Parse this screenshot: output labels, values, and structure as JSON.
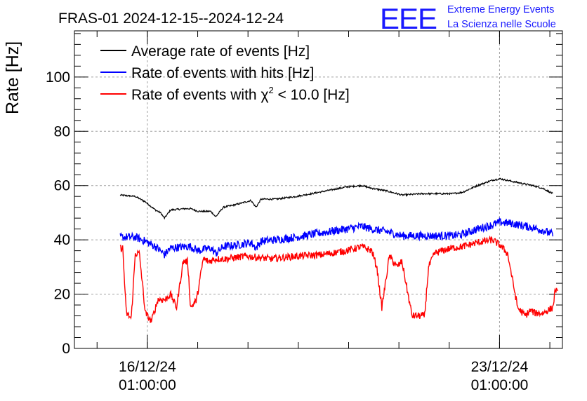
{
  "header": {
    "title": "FRAS-01 2024-12-15--2024-12-24",
    "logo_text": "EEE",
    "org_line1": "Extreme Energy Events",
    "org_line2": "La Scienza nelle Scuole"
  },
  "colors": {
    "average": "#000000",
    "hits": "#0000ff",
    "chi2": "#ff0000",
    "grid": "#a0a0a0",
    "logo": "#1a1aff"
  },
  "chart_data": {
    "type": "line",
    "title": "FRAS-01 2024-12-15--2024-12-24",
    "xlabel": "",
    "ylabel": "Rate [Hz]",
    "ylim": [
      0,
      117
    ],
    "xlim_days_from_2024_12_15_00h": [
      -0.41,
      9.29
    ],
    "y_ticks": [
      0,
      20,
      40,
      60,
      80,
      100
    ],
    "x_ticks": [
      {
        "day": 1.04,
        "line1": "16/12/24",
        "line2": "01:00:00"
      },
      {
        "day": 8.04,
        "line1": "23/12/24",
        "line2": "01:00:00"
      }
    ],
    "grid": true,
    "legend_position": "top-left",
    "series": [
      {
        "name": "Average rate of events [Hz]",
        "key": "average",
        "x": [
          0.5,
          0.8,
          1.0,
          1.2,
          1.3,
          1.38,
          1.5,
          1.8,
          1.9,
          2.05,
          2.3,
          2.4,
          2.55,
          2.8,
          3.1,
          3.2,
          3.3,
          3.6,
          4.0,
          4.3,
          5.0,
          5.3,
          5.5,
          5.8,
          6.1,
          6.5,
          7.1,
          7.3,
          7.6,
          7.9,
          8.05,
          8.3,
          8.7,
          8.9,
          9.1
        ],
        "values": [
          56.5,
          56,
          54,
          51,
          50,
          48,
          51,
          51.5,
          51.5,
          50.5,
          50.5,
          48.5,
          52,
          53,
          54.5,
          52,
          55,
          55,
          56,
          57,
          59.5,
          60,
          59,
          58,
          56.5,
          57,
          57,
          57.5,
          60,
          62,
          62.5,
          61.5,
          60,
          59,
          57
        ],
        "noise": 0.3
      },
      {
        "name": "Rate of events with hits [Hz]",
        "key": "hits",
        "x": [
          0.5,
          0.8,
          1.0,
          1.2,
          1.3,
          1.38,
          1.5,
          1.8,
          1.9,
          2.05,
          2.3,
          2.4,
          2.55,
          2.8,
          3.1,
          3.2,
          3.3,
          3.6,
          4.0,
          4.3,
          5.0,
          5.3,
          5.5,
          5.8,
          6.1,
          6.5,
          7.1,
          7.3,
          7.6,
          7.9,
          8.05,
          8.3,
          8.7,
          8.9,
          9.1
        ],
        "values": [
          41,
          41,
          39.5,
          37.5,
          36,
          34.5,
          37,
          37.5,
          37.5,
          36,
          37,
          35,
          37.5,
          38,
          39,
          37,
          39.5,
          40,
          41,
          42,
          44,
          45,
          44,
          43,
          41.5,
          41.5,
          41.5,
          42,
          44,
          45.5,
          46.5,
          46,
          44.5,
          43.5,
          42
        ],
        "noise": 1.5
      },
      {
        "name": "Rate of events with χ2 < 10.0 [Hz]",
        "key": "chi2",
        "x": [
          0.5,
          0.55,
          0.62,
          0.72,
          0.8,
          0.88,
          1.0,
          1.12,
          1.25,
          1.4,
          1.5,
          1.62,
          1.75,
          1.84,
          1.9,
          2.02,
          2.15,
          2.25,
          2.4,
          2.6,
          3.0,
          3.5,
          4.0,
          4.5,
          5.0,
          5.3,
          5.5,
          5.6,
          5.7,
          5.85,
          6.0,
          6.1,
          6.3,
          6.55,
          6.63,
          6.75,
          6.9,
          7.1,
          7.3,
          7.6,
          7.9,
          8.05,
          8.2,
          8.3,
          8.4,
          8.55,
          8.65,
          8.75,
          8.9,
          9.1,
          9.15,
          9.2
        ],
        "values": [
          37,
          37,
          13,
          11,
          35,
          35,
          13,
          10,
          18,
          18,
          20,
          15,
          32,
          32,
          15,
          18,
          33,
          32,
          33,
          33,
          34,
          33,
          34,
          34.5,
          36,
          37.5,
          36,
          30,
          15,
          34,
          30,
          32,
          12,
          12,
          30,
          35,
          36,
          37,
          37.5,
          39,
          40,
          38,
          35,
          25,
          15,
          12,
          14,
          13,
          13,
          15,
          22,
          20
        ],
        "noise": 1.3
      }
    ],
    "legend": [
      {
        "key": "average",
        "label_main": "Average rate of events [Hz]"
      },
      {
        "key": "hits",
        "label_main": "Rate of events with hits [Hz]"
      },
      {
        "key": "chi2",
        "label_main": "Rate of events with ",
        "label_chi": "χ",
        "label_sup": "2",
        "label_rest": " < 10.0 [Hz]"
      }
    ]
  }
}
